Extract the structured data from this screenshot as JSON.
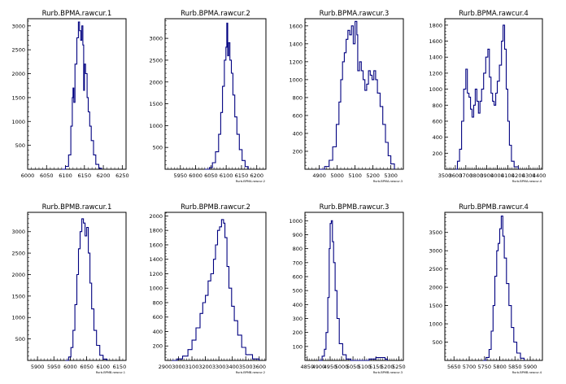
{
  "chart_data": [
    {
      "type": "histogram",
      "title": "Rurb.BPMA.rawcur.1",
      "xlabel": "",
      "xlim": [
        6000,
        6260
      ],
      "ylim": [
        0,
        3150
      ],
      "xticks": [
        6000,
        6050,
        6100,
        6150,
        6200,
        6250
      ],
      "yticks": [
        500,
        1000,
        1500,
        2000,
        2500,
        3000
      ],
      "points": [
        [
          6090,
          0
        ],
        [
          6100,
          60
        ],
        [
          6108,
          300
        ],
        [
          6114,
          900
        ],
        [
          6118,
          1500
        ],
        [
          6120,
          1700
        ],
        [
          6122,
          1400
        ],
        [
          6125,
          2200
        ],
        [
          6130,
          2750
        ],
        [
          6134,
          3080
        ],
        [
          6137,
          2900
        ],
        [
          6140,
          2700
        ],
        [
          6143,
          3000
        ],
        [
          6146,
          2600
        ],
        [
          6148,
          1650
        ],
        [
          6150,
          2200
        ],
        [
          6153,
          2000
        ],
        [
          6157,
          1500
        ],
        [
          6160,
          1200
        ],
        [
          6164,
          900
        ],
        [
          6168,
          600
        ],
        [
          6174,
          300
        ],
        [
          6180,
          100
        ],
        [
          6188,
          20
        ],
        [
          6195,
          0
        ]
      ]
    },
    {
      "type": "histogram",
      "title": "Rurb.BPMA.rawcur.2",
      "xlabel": "Rurb.BPMA.rawcur.2",
      "xlim": [
        5900,
        6230
      ],
      "ylim": [
        0,
        3450
      ],
      "xticks": [
        5950,
        6000,
        6050,
        6100,
        6150,
        6200
      ],
      "yticks": [
        500,
        1000,
        1500,
        2000,
        2500,
        3000
      ],
      "points": [
        [
          6030,
          0
        ],
        [
          6045,
          40
        ],
        [
          6055,
          150
        ],
        [
          6065,
          400
        ],
        [
          6075,
          800
        ],
        [
          6082,
          1300
        ],
        [
          6088,
          1900
        ],
        [
          6094,
          2500
        ],
        [
          6099,
          2800
        ],
        [
          6102,
          3350
        ],
        [
          6105,
          2600
        ],
        [
          6108,
          2900
        ],
        [
          6112,
          2500
        ],
        [
          6117,
          2200
        ],
        [
          6122,
          1700
        ],
        [
          6128,
          1200
        ],
        [
          6135,
          800
        ],
        [
          6143,
          450
        ],
        [
          6152,
          200
        ],
        [
          6162,
          60
        ],
        [
          6172,
          0
        ]
      ]
    },
    {
      "type": "histogram",
      "title": "Rurb.BPMA.rawcur.3",
      "xlabel": "Rurb.BPMA.rawcur.3",
      "xlim": [
        4820,
        5370
      ],
      "ylim": [
        0,
        1680
      ],
      "xticks": [
        4900,
        5000,
        5100,
        5200,
        5300
      ],
      "yticks": [
        200,
        400,
        600,
        800,
        1000,
        1200,
        1400,
        1600
      ],
      "points": [
        [
          4900,
          0
        ],
        [
          4930,
          30
        ],
        [
          4955,
          100
        ],
        [
          4975,
          250
        ],
        [
          4995,
          500
        ],
        [
          5010,
          750
        ],
        [
          5020,
          1000
        ],
        [
          5030,
          1200
        ],
        [
          5040,
          1300
        ],
        [
          5050,
          1450
        ],
        [
          5060,
          1550
        ],
        [
          5070,
          1500
        ],
        [
          5080,
          1600
        ],
        [
          5090,
          1400
        ],
        [
          5100,
          1650
        ],
        [
          5110,
          1500
        ],
        [
          5115,
          1100
        ],
        [
          5125,
          1200
        ],
        [
          5135,
          1100
        ],
        [
          5145,
          1000
        ],
        [
          5155,
          880
        ],
        [
          5165,
          950
        ],
        [
          5175,
          1100
        ],
        [
          5185,
          1050
        ],
        [
          5195,
          1000
        ],
        [
          5205,
          1100
        ],
        [
          5215,
          1000
        ],
        [
          5225,
          850
        ],
        [
          5240,
          700
        ],
        [
          5255,
          500
        ],
        [
          5270,
          300
        ],
        [
          5285,
          150
        ],
        [
          5300,
          60
        ],
        [
          5320,
          0
        ]
      ]
    },
    {
      "type": "histogram",
      "title": "Rurb.BPMA.rawcur.4",
      "xlabel": "Rurb.BPMA.rawcur.4",
      "xlim": [
        3500,
        4430
      ],
      "ylim": [
        0,
        1880
      ],
      "xticks": [
        3500,
        3600,
        3700,
        3800,
        3900,
        4000,
        4100,
        4200,
        4300,
        4400
      ],
      "yticks": [
        200,
        400,
        600,
        800,
        1000,
        1200,
        1400,
        1600,
        1800
      ],
      "points": [
        [
          3600,
          0
        ],
        [
          3620,
          100
        ],
        [
          3640,
          250
        ],
        [
          3660,
          600
        ],
        [
          3680,
          1000
        ],
        [
          3700,
          1250
        ],
        [
          3715,
          950
        ],
        [
          3730,
          900
        ],
        [
          3745,
          750
        ],
        [
          3760,
          650
        ],
        [
          3775,
          800
        ],
        [
          3790,
          1000
        ],
        [
          3805,
          850
        ],
        [
          3820,
          700
        ],
        [
          3835,
          850
        ],
        [
          3850,
          1000
        ],
        [
          3870,
          1200
        ],
        [
          3890,
          1400
        ],
        [
          3910,
          1500
        ],
        [
          3925,
          1150
        ],
        [
          3940,
          950
        ],
        [
          3955,
          850
        ],
        [
          3970,
          800
        ],
        [
          3985,
          950
        ],
        [
          4000,
          1100
        ],
        [
          4020,
          1300
        ],
        [
          4040,
          1600
        ],
        [
          4055,
          1800
        ],
        [
          4070,
          1500
        ],
        [
          4085,
          1000
        ],
        [
          4100,
          600
        ],
        [
          4115,
          300
        ],
        [
          4135,
          100
        ],
        [
          4160,
          30
        ],
        [
          4200,
          0
        ]
      ]
    },
    {
      "type": "histogram",
      "title": "Rurb.BPMB.rawcur.1",
      "xlabel": "Rurb.BPMB.rawcur.1",
      "xlim": [
        5870,
        6170
      ],
      "ylim": [
        0,
        3450
      ],
      "xticks": [
        5900,
        5950,
        6000,
        6050,
        6100,
        6150
      ],
      "yticks": [
        500,
        1000,
        1500,
        2000,
        2500,
        3000
      ],
      "points": [
        [
          5985,
          0
        ],
        [
          5995,
          80
        ],
        [
          6002,
          300
        ],
        [
          6008,
          700
        ],
        [
          6014,
          1300
        ],
        [
          6020,
          2000
        ],
        [
          6025,
          2600
        ],
        [
          6030,
          3000
        ],
        [
          6035,
          3300
        ],
        [
          6040,
          3200
        ],
        [
          6045,
          2900
        ],
        [
          6050,
          3100
        ],
        [
          6055,
          2500
        ],
        [
          6060,
          1800
        ],
        [
          6065,
          1200
        ],
        [
          6072,
          700
        ],
        [
          6080,
          350
        ],
        [
          6090,
          120
        ],
        [
          6100,
          30
        ],
        [
          6112,
          0
        ]
      ]
    },
    {
      "type": "histogram",
      "title": "Rurb.BPMB.rawcur.2",
      "xlabel": "Rurb.BPMB.rawcur.2",
      "xlim": [
        2900,
        3650
      ],
      "ylim": [
        0,
        2050
      ],
      "xticks": [
        2900,
        3000,
        3100,
        3200,
        3300,
        3400,
        3500,
        3600
      ],
      "yticks": [
        200,
        400,
        600,
        800,
        1000,
        1200,
        1400,
        1600,
        1800,
        2000
      ],
      "points": [
        [
          2950,
          0
        ],
        [
          2990,
          20
        ],
        [
          3030,
          60
        ],
        [
          3070,
          150
        ],
        [
          3100,
          280
        ],
        [
          3130,
          450
        ],
        [
          3160,
          650
        ],
        [
          3180,
          800
        ],
        [
          3200,
          900
        ],
        [
          3220,
          1100
        ],
        [
          3240,
          1200
        ],
        [
          3260,
          1400
        ],
        [
          3275,
          1600
        ],
        [
          3290,
          1800
        ],
        [
          3305,
          1850
        ],
        [
          3320,
          1950
        ],
        [
          3335,
          1900
        ],
        [
          3345,
          1700
        ],
        [
          3360,
          1300
        ],
        [
          3375,
          1000
        ],
        [
          3395,
          750
        ],
        [
          3415,
          550
        ],
        [
          3440,
          350
        ],
        [
          3470,
          180
        ],
        [
          3500,
          80
        ],
        [
          3550,
          20
        ],
        [
          3600,
          0
        ]
      ]
    },
    {
      "type": "histogram",
      "title": "Rurb.BPMB.rawcur.3",
      "xlabel": "Rurb.BPMB.rawcur.3",
      "xlim": [
        4840,
        5270
      ],
      "ylim": [
        0,
        1060
      ],
      "xticks": [
        4850,
        4900,
        4950,
        5000,
        5050,
        5100,
        5150,
        5200,
        5250
      ],
      "yticks": [
        100,
        200,
        300,
        400,
        500,
        600,
        700,
        800,
        900,
        1000
      ],
      "points": [
        [
          4900,
          0
        ],
        [
          4915,
          30
        ],
        [
          4925,
          80
        ],
        [
          4932,
          200
        ],
        [
          4940,
          450
        ],
        [
          4946,
          800
        ],
        [
          4950,
          980
        ],
        [
          4955,
          1000
        ],
        [
          4960,
          850
        ],
        [
          4965,
          700
        ],
        [
          4972,
          500
        ],
        [
          4980,
          300
        ],
        [
          4990,
          120
        ],
        [
          5005,
          40
        ],
        [
          5020,
          10
        ],
        [
          5040,
          0
        ],
        [
          5120,
          10
        ],
        [
          5150,
          20
        ],
        [
          5170,
          20
        ],
        [
          5190,
          10
        ],
        [
          5200,
          0
        ]
      ]
    },
    {
      "type": "histogram",
      "title": "Rurb.BPMB.rawcur.4",
      "xlabel": "Rurb.BPMB.rawcur.4",
      "xlim": [
        5620,
        5940
      ],
      "ylim": [
        0,
        4050
      ],
      "xticks": [
        5650,
        5700,
        5750,
        5800,
        5850,
        5900
      ],
      "yticks": [
        500,
        1000,
        1500,
        2000,
        2500,
        3000,
        3500
      ],
      "points": [
        [
          5745,
          0
        ],
        [
          5755,
          80
        ],
        [
          5765,
          300
        ],
        [
          5772,
          800
        ],
        [
          5778,
          1500
        ],
        [
          5784,
          2300
        ],
        [
          5790,
          3000
        ],
        [
          5795,
          3200
        ],
        [
          5800,
          3600
        ],
        [
          5805,
          3950
        ],
        [
          5810,
          3400
        ],
        [
          5815,
          2800
        ],
        [
          5822,
          2100
        ],
        [
          5830,
          1500
        ],
        [
          5838,
          900
        ],
        [
          5846,
          500
        ],
        [
          5856,
          200
        ],
        [
          5868,
          60
        ],
        [
          5880,
          0
        ]
      ]
    }
  ]
}
